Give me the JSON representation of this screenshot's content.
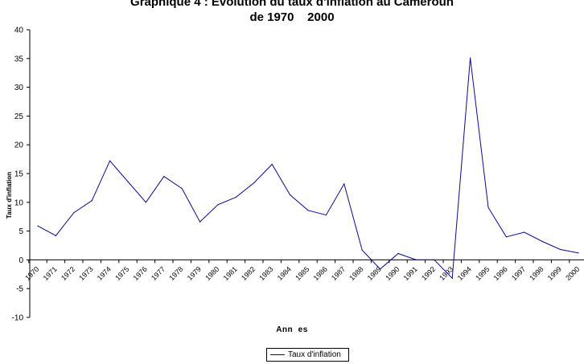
{
  "chart_data": {
    "type": "line",
    "title_line1": "Graphique 4 : Evolution du taux d'inflation au Cameroun",
    "title_line2": "de 1970    2000",
    "xlabel": "Ann  es",
    "ylabel": "Taux d'inflation",
    "ylim": [
      -10,
      40
    ],
    "yticks": [
      -10,
      -5,
      0,
      5,
      10,
      15,
      20,
      25,
      30,
      35,
      40
    ],
    "categories": [
      "1970",
      "1971",
      "1972",
      "1973",
      "1974",
      "1975",
      "1976",
      "1977",
      "1978",
      "1979",
      "1980",
      "1981",
      "1982",
      "1983",
      "1984",
      "1985",
      "1986",
      "1987",
      "1988",
      "1989",
      "1990",
      "1991",
      "1992",
      "1993",
      "1994",
      "1995",
      "1996",
      "1997",
      "1998",
      "1999",
      "2000"
    ],
    "series": [
      {
        "name": "Taux d'inflation",
        "color": "#0a0a8f",
        "values": [
          5.9,
          4.2,
          8.2,
          10.3,
          17.2,
          13.6,
          10.0,
          14.5,
          12.4,
          6.6,
          9.6,
          10.9,
          13.4,
          16.6,
          11.3,
          8.6,
          7.8,
          13.2,
          1.7,
          -1.6,
          1.1,
          0.0,
          0.0,
          -3.2,
          35.1,
          9.1,
          4.0,
          4.8,
          3.2,
          1.8,
          1.2
        ]
      }
    ],
    "grid": false,
    "legend": "bottom"
  }
}
